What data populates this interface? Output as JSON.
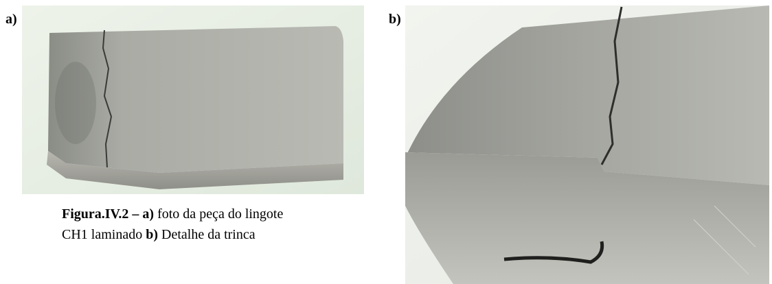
{
  "figure": {
    "panels": [
      {
        "label": "a)"
      },
      {
        "label": "b)"
      }
    ],
    "caption": {
      "lines": [
        [
          {
            "text": "Figura.IV.2 – a)",
            "bold": true
          },
          {
            "text": " foto da peça do lingote",
            "bold": false
          }
        ],
        [
          {
            "text": "CH1 laminado ",
            "bold": false
          },
          {
            "text": "b)",
            "bold": true
          },
          {
            "text": " Detalhe da trinca",
            "bold": false
          }
        ]
      ]
    }
  }
}
